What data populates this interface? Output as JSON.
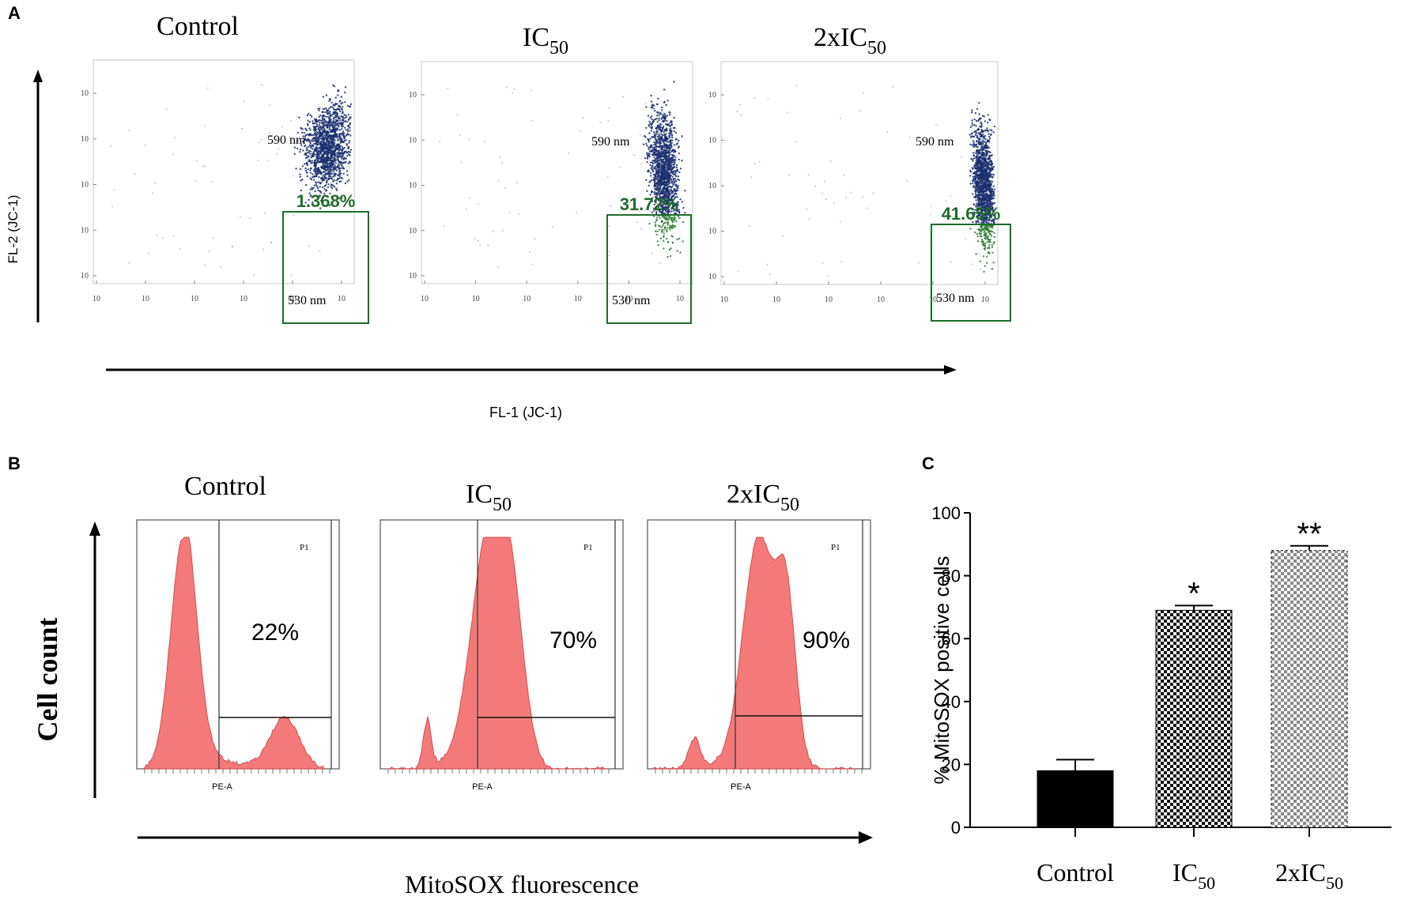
{
  "panel_labels": {
    "a": "A",
    "b": "B",
    "c": "C"
  },
  "panel_a": {
    "x_axis_label": "FL-1 (JC-1)",
    "y_axis_label": "FL-2 (JC-1)",
    "tick_mark": "10",
    "high_label": "590 nm",
    "low_label": "530 nm",
    "colors": {
      "high": "#1b2f6e",
      "low": "#2e7d32",
      "percent": "#1f6b2a"
    },
    "plots": [
      {
        "title": "Control",
        "title_base": "",
        "title_sub": "",
        "percent": "1.368%"
      },
      {
        "title": "",
        "title_base": "IC",
        "title_sub": "50",
        "percent": "31.72%"
      },
      {
        "title": "",
        "title_base": "2xIC",
        "title_sub": "50",
        "percent": "41.65%"
      }
    ]
  },
  "panel_b": {
    "x_axis_label": "MitoSOX fluorescence",
    "y_axis_label": "Cell count",
    "gate_label": "P1",
    "fill_color": "#f47a7a",
    "plots": [
      {
        "title": "Control",
        "title_base": "",
        "title_sub": "",
        "percent": "22%",
        "x_label": "PE-A"
      },
      {
        "title": "",
        "title_base": "IC",
        "title_sub": "50",
        "percent": "70%",
        "x_label": "PE-A"
      },
      {
        "title": "",
        "title_base": "2xIC",
        "title_sub": "50",
        "percent": "90%",
        "x_label": "PE-A"
      }
    ]
  },
  "chart_data": {
    "type": "bar",
    "title": "",
    "xlabel": "",
    "ylabel": "% MitoSOX positive cells",
    "ylim": [
      0,
      100
    ],
    "yticks": [
      0,
      20,
      40,
      60,
      80,
      100
    ],
    "categories": [
      "Control",
      "IC50",
      "2xIC50"
    ],
    "category_labels": [
      {
        "base": "Control",
        "sub": ""
      },
      {
        "base": "IC",
        "sub": "50"
      },
      {
        "base": "2xIC",
        "sub": "50"
      }
    ],
    "values": [
      18,
      69,
      88
    ],
    "errors": [
      3.5,
      1.5,
      1.5
    ],
    "significance": [
      "",
      "*",
      "**"
    ],
    "fills": [
      "solid-black",
      "checker-dark",
      "checker-light"
    ]
  }
}
